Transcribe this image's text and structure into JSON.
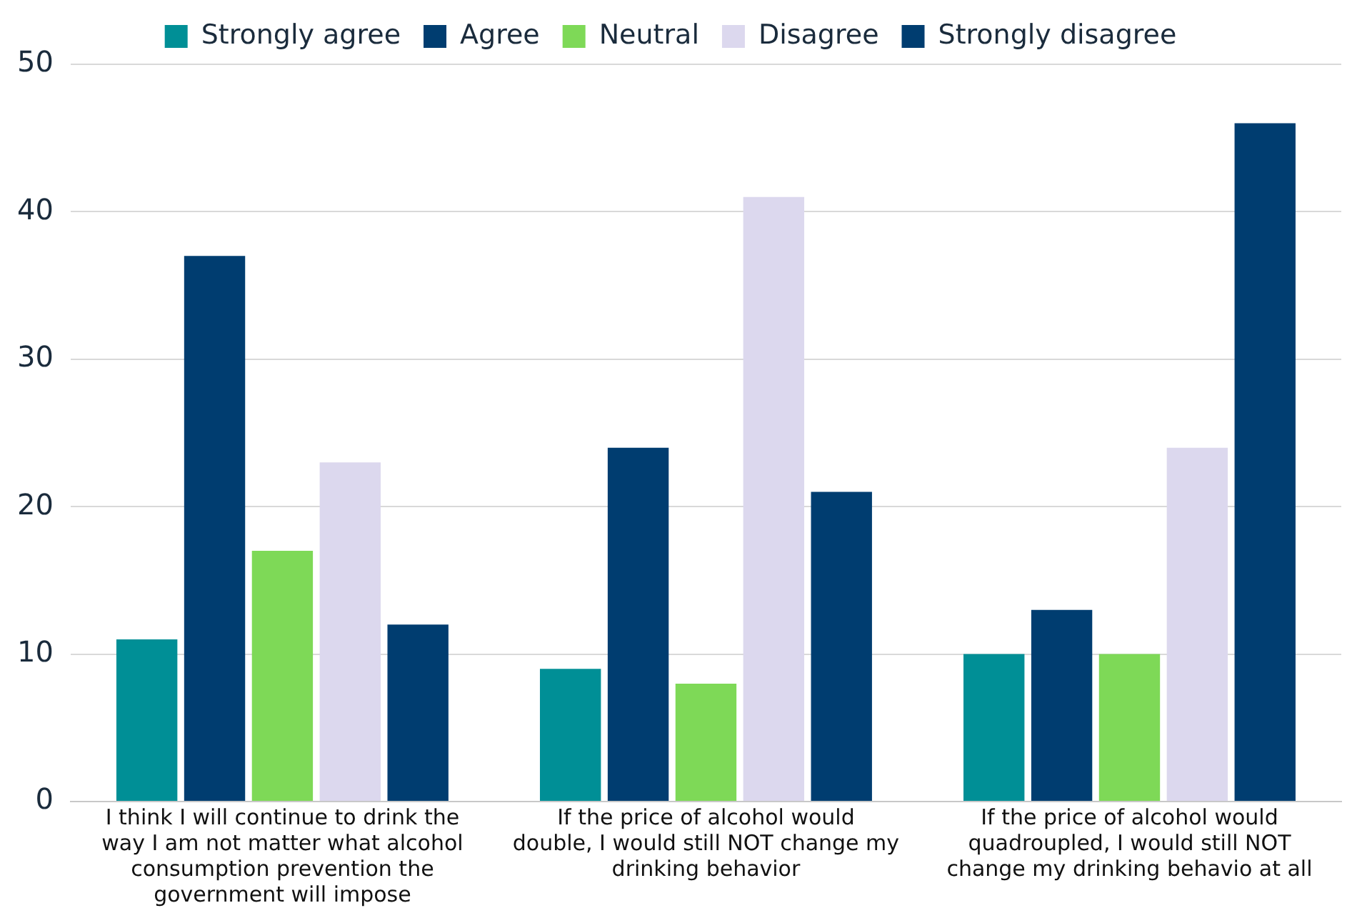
{
  "chart_data": {
    "type": "bar",
    "categories": [
      "I think I will continue to drink the way I am not matter what alcohol consumption prevention the government will impose",
      "If the price of alcohol would double, I would still NOT change my drinking behavior",
      "If the price of alcohol would quadroupled, I would still NOT change my drinking behavio at all"
    ],
    "series": [
      {
        "name": "Strongly agree",
        "color": "#008f96",
        "values": [
          11,
          9,
          10
        ]
      },
      {
        "name": "Agree",
        "color": "#003d70",
        "values": [
          37,
          24,
          13
        ]
      },
      {
        "name": "Neutral",
        "color": "#7ed957",
        "values": [
          17,
          8,
          10
        ]
      },
      {
        "name": "Disagree",
        "color": "#dcd8ee",
        "values": [
          23,
          41,
          24
        ]
      },
      {
        "name": "Strongly disagree",
        "color": "#003d70",
        "values": [
          12,
          21,
          46
        ]
      }
    ],
    "ylim": [
      0,
      50
    ],
    "yticks": [
      0,
      10,
      20,
      30,
      40,
      50
    ],
    "grid": "y",
    "legend": "top"
  }
}
